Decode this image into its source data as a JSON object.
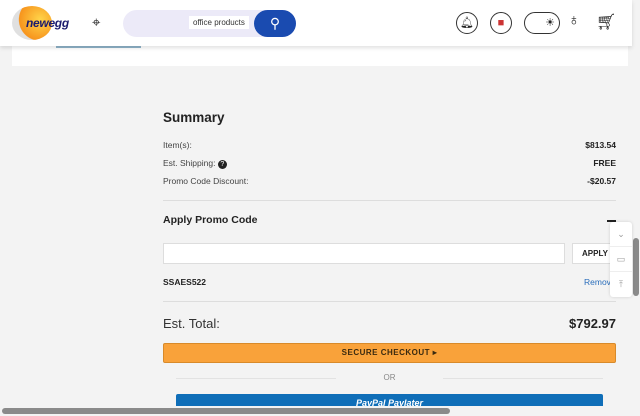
{
  "header": {
    "logo": "newegg",
    "search_value": "office products",
    "icons": [
      "location-pin-icon",
      "search-icon",
      "bell-icon",
      "us-flag-icon",
      "theme-toggle-sun-icon",
      "user-icon",
      "cart-icon"
    ]
  },
  "summary": {
    "title": "Summary",
    "items_label": "Item(s):",
    "items_value": "$813.54",
    "shipping_label": "Est. Shipping:",
    "shipping_value": "FREE",
    "discount_label": "Promo Code Discount:",
    "discount_value": "-$20.57",
    "promo_title": "Apply Promo Code",
    "promo_placeholder": "",
    "apply_label": "APPLY",
    "applied_code": "SSAES522",
    "remove_label": "Remove",
    "total_label": "Est. Total:",
    "total_value": "$792.97",
    "checkout_label": "SECURE CHECKOUT ▸",
    "or_label": "OR",
    "paypal_label": "PayPal Paylater"
  },
  "colors": {
    "checkout": "#f9a23a",
    "search_button": "#1a4bb0",
    "paypal": "#0f6eb8",
    "link": "#2a6ebb"
  }
}
